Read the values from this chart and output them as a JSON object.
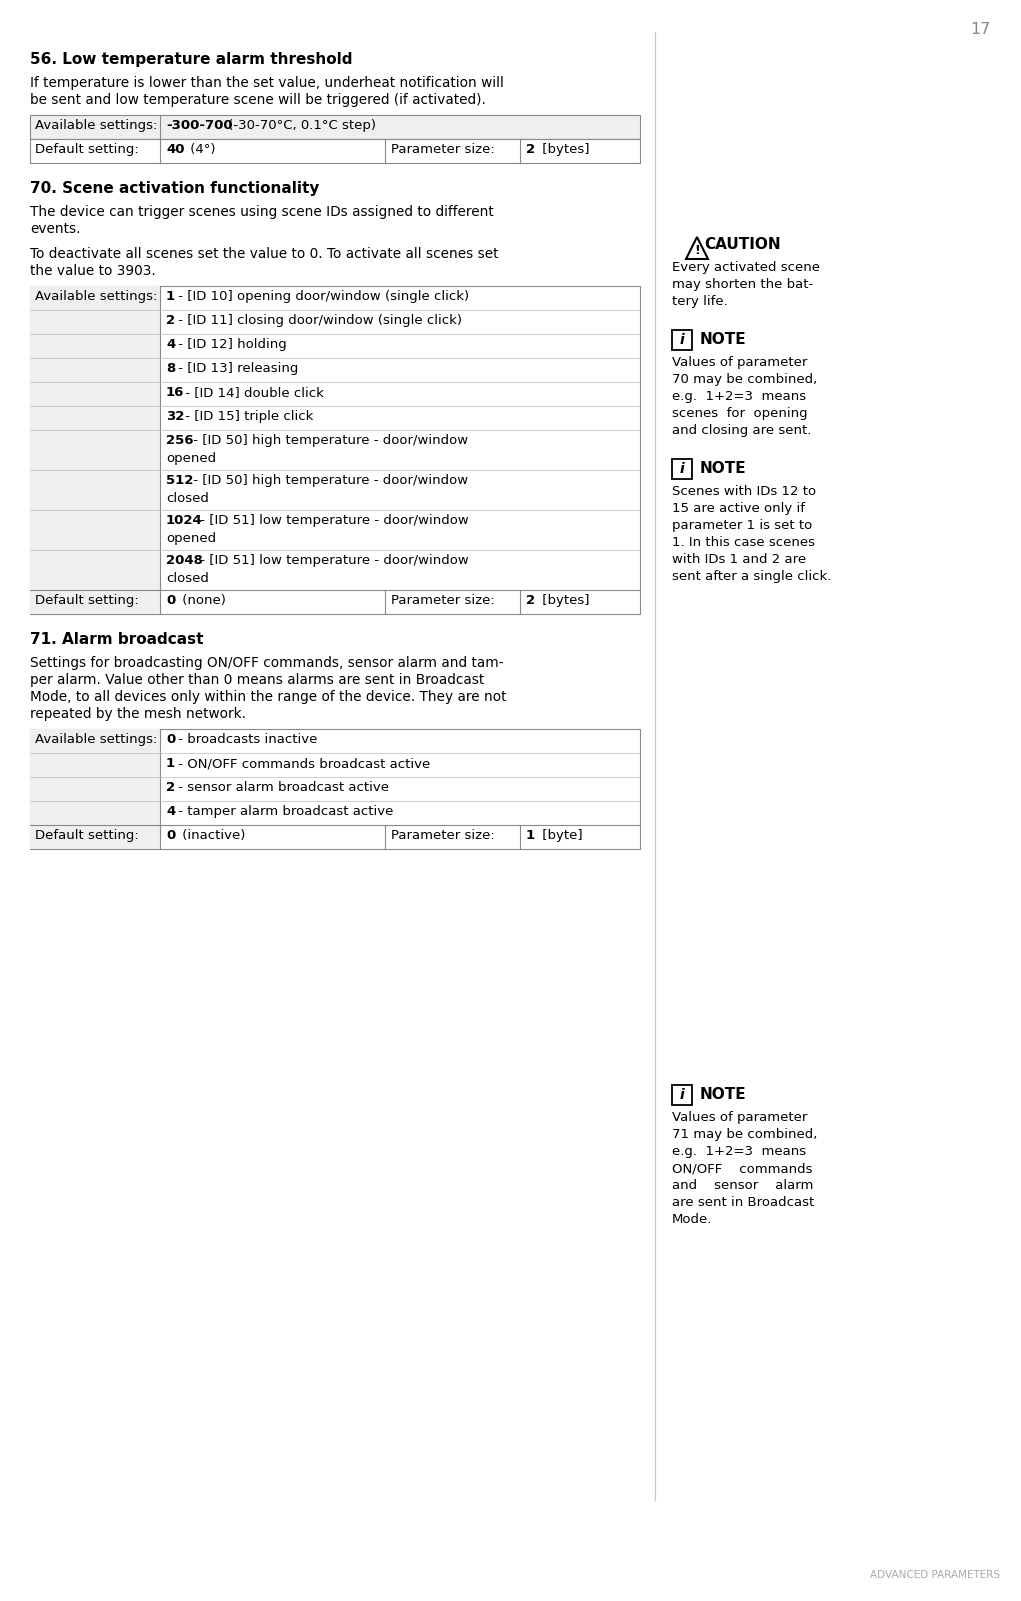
{
  "page_number": "17",
  "section_title": "ADVANCED PARAMETERS",
  "bg_color": "#ffffff",
  "text_color": "#000000",
  "param56": {
    "title": "56. Low temperature alarm threshold",
    "body_line1": "If temperature is lower than the set value, underheat notification will",
    "body_line2": "be sent and low temperature scene will be triggered (if activated).",
    "avail_bold": "-300-700",
    "avail_rest": " (-30-70°C, 0.1°C step)",
    "default_bold": "40",
    "default_plain": " (4°)",
    "param_size_bold": "2",
    "param_size_plain": " [bytes]"
  },
  "param70": {
    "title": "70. Scene activation functionality",
    "body_line1": "The device can trigger scenes using scene IDs assigned to different",
    "body_line2": "events.",
    "body_line3": "To deactivate all scenes set the value to 0. To activate all scenes set",
    "body_line4": "the value to 3903.",
    "rows": [
      {
        "bold": "1",
        "plain": " - [ID 10] opening door/window (single click)",
        "lines": 1
      },
      {
        "bold": "2",
        "plain": " - [ID 11] closing door/window (single click)",
        "lines": 1
      },
      {
        "bold": "4",
        "plain": " - [ID 12] holding",
        "lines": 1
      },
      {
        "bold": "8",
        "plain": " - [ID 13] releasing",
        "lines": 1
      },
      {
        "bold": "16",
        "plain": " - [ID 14] double click",
        "lines": 1
      },
      {
        "bold": "32",
        "plain": " - [ID 15] triple click",
        "lines": 1
      },
      {
        "bold": "256",
        "plain1": " - [ID 50] high temperature - door/window",
        "plain2": "opened",
        "lines": 2
      },
      {
        "bold": "512",
        "plain1": " - [ID 50] high temperature - door/window",
        "plain2": "closed",
        "lines": 2
      },
      {
        "bold": "1024",
        "plain1": " - [ID 51] low temperature - door/window",
        "plain2": "opened",
        "lines": 2
      },
      {
        "bold": "2048",
        "plain1": " - [ID 51] low temperature - door/window",
        "plain2": "closed",
        "lines": 2
      }
    ],
    "default_bold": "0",
    "default_plain": " (none)",
    "param_size_bold": "2",
    "param_size_plain": " [bytes]"
  },
  "param71": {
    "title": "71. Alarm broadcast",
    "body_line1": "Settings for broadcasting ON/OFF commands, sensor alarm and tam-",
    "body_line2": "per alarm. Value other than 0 means alarms are sent in Broadcast",
    "body_line3": "Mode, to all devices only within the range of the device. They are not",
    "body_line4": "repeated by the mesh network.",
    "rows": [
      {
        "bold": "0",
        "plain": " - broadcasts inactive",
        "lines": 1
      },
      {
        "bold": "1",
        "plain": " - ON/OFF commands broadcast active",
        "lines": 1
      },
      {
        "bold": "2",
        "plain": " - sensor alarm broadcast active",
        "lines": 1
      },
      {
        "bold": "4",
        "plain": " - tamper alarm broadcast active",
        "lines": 1
      }
    ],
    "default_bold": "0",
    "default_plain": " (inactive)",
    "param_size_bold": "1",
    "param_size_plain": " [byte]"
  },
  "caution_title": "CAUTION",
  "caution_body": [
    "Every activated scene",
    "may shorten the bat-",
    "tery life."
  ],
  "note1_title": "NOTE",
  "note1_body": [
    "Values of parameter",
    "70 may be combined,",
    "e.g.  1+2=3  means",
    "scenes  for  opening",
    "and closing are sent."
  ],
  "note2_title": "NOTE",
  "note2_body": [
    "Scenes with IDs 12 to",
    "15 are active only if",
    "parameter 1 is set to",
    "1. In this case scenes",
    "with IDs 1 and 2 are",
    "sent after a single click."
  ],
  "note3_title": "NOTE",
  "note3_body": [
    "Values of parameter",
    "71 may be combined,",
    "e.g.  1+2=3  means",
    "ON/OFF    commands",
    "and    sensor    alarm",
    "are sent in Broadcast",
    "Mode."
  ]
}
